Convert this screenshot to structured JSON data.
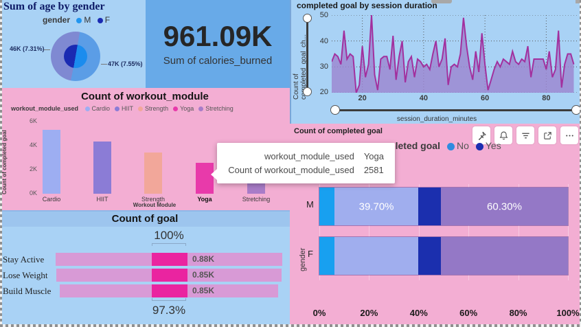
{
  "age_gender": {
    "title": "Sum of age by gender",
    "legend_title": "gender",
    "legend": [
      {
        "label": "M",
        "color": "#2196f0"
      },
      {
        "label": "F",
        "color": "#1a2ab2"
      }
    ],
    "slice_labels": {
      "left": "46K (7.31%)",
      "right": "47K (7.55%)"
    },
    "colors": {
      "outer_m": "#5b9de6",
      "outer_f": "#7f89d2",
      "inner_m": "#1b8cee",
      "inner_f": "#1a2ab2"
    }
  },
  "card": {
    "value": "961.09K",
    "label": "Sum of calories_burned"
  },
  "session": {
    "title": "completed goal by session duration",
    "y_label": "Count of completed_goal_ch...",
    "x_label": "session_duration_minutes",
    "y_ticks": [
      50,
      40,
      30,
      20
    ],
    "x_ticks": [
      20,
      40,
      60,
      80
    ]
  },
  "workout": {
    "title": "Count of workout_module",
    "legend_title": "workout_module_used",
    "y_axis": "Count of completed goal",
    "x_axis": "Workout Module",
    "y_ticks": [
      "6K",
      "4K",
      "2K",
      "0K"
    ],
    "highlight_category": "Yoga"
  },
  "tooltip": {
    "rows": [
      {
        "label": "workout_module_used",
        "value": "Yoga"
      },
      {
        "label": "Count of workout_module_used",
        "value": "2581"
      }
    ]
  },
  "funnel": {
    "title": "Count of goal",
    "top_percent": "100%",
    "bottom_percent": "97.3%",
    "colors": {
      "dim": "#d89ad6",
      "highlight": "#ea24a0"
    }
  },
  "stacked": {
    "title": "Count of completed goal",
    "legend_title": "completed goal",
    "legend": [
      {
        "label": "No",
        "color": "#2e8be0"
      },
      {
        "label": "Yes",
        "color": "#1b2fb0"
      }
    ],
    "y_axis": "gender",
    "x_ticks": [
      "0%",
      "20%",
      "40%",
      "60%",
      "80%",
      "100%"
    ],
    "segment_colors": [
      "#18a0f0",
      "#a0aeee",
      "#1b2fae",
      "#9478c6"
    ],
    "segment_widths_pct": [
      6.1,
      33.7,
      9.1,
      51.1
    ],
    "toolbar_icons": [
      "pin",
      "bell",
      "filter",
      "popout",
      "more"
    ]
  },
  "chart_data": [
    {
      "type": "pie",
      "title": "Sum of age by gender",
      "categories": [
        "M",
        "F"
      ],
      "values": [
        47000,
        46000
      ],
      "value_labels": [
        "47K (7.55%)",
        "46K (7.31%)"
      ],
      "legend_position": "top"
    },
    {
      "type": "card",
      "title": "Sum of calories_burned",
      "value": "961.09K"
    },
    {
      "type": "area",
      "title": "completed goal by session duration",
      "xlabel": "session_duration_minutes",
      "ylabel": "Count of completed_goal_ch...",
      "xlim": [
        10,
        90
      ],
      "ylim": [
        20,
        50
      ],
      "x_start": 10,
      "x_step": 1,
      "values": [
        32,
        35,
        34,
        31,
        44,
        33,
        35,
        34,
        20,
        23,
        38,
        26,
        31,
        50,
        27,
        21,
        33,
        34,
        34,
        29,
        42,
        25,
        34,
        40,
        24,
        32,
        34,
        26,
        33,
        32,
        30,
        31,
        29,
        35,
        40,
        30,
        33,
        41,
        23,
        30,
        31,
        30,
        35,
        49,
        38,
        30,
        25,
        36,
        28,
        43,
        31,
        21,
        25,
        29,
        32,
        30,
        33,
        32,
        31,
        36,
        32,
        31,
        33,
        32,
        38,
        26,
        33,
        33,
        33,
        33,
        29,
        36,
        26,
        29,
        44,
        22,
        31,
        35,
        35,
        31
      ],
      "grid": "dotted"
    },
    {
      "type": "bar",
      "title": "Count of workout_module",
      "categories": [
        "Cardio",
        "HIIT",
        "Strength",
        "Yoga",
        "Stretching"
      ],
      "values": [
        5300,
        4350,
        3450,
        2581,
        2600
      ],
      "colors": [
        "#9daef2",
        "#8b7cd6",
        "#f2a79a",
        "#e83aaa",
        "#a87cc8"
      ],
      "xlabel": "Workout Module",
      "ylabel": "Count of completed goal",
      "ylim": [
        0,
        6000
      ],
      "highlighted": "Yoga"
    },
    {
      "type": "bar",
      "subtype": "funnel",
      "title": "Count of goal",
      "categories": [
        "Stay Active",
        "Lose Weight",
        "Build Muscle"
      ],
      "value_labels": [
        "0.88K",
        "0.85K",
        "0.85K"
      ],
      "top_annotation": "100%",
      "bottom_annotation": "97.3%"
    },
    {
      "type": "bar",
      "subtype": "stacked-100",
      "title": "Count of completed goal",
      "categories": [
        "M",
        "F"
      ],
      "series": [
        {
          "name": "No",
          "values_pct": [
            39.7,
            39.7
          ]
        },
        {
          "name": "Yes",
          "values_pct": [
            60.3,
            60.3
          ]
        }
      ],
      "bar_labels_M": [
        "39.70%",
        "60.30%"
      ],
      "xlabel_ticks": [
        "0%",
        "20%",
        "40%",
        "60%",
        "80%",
        "100%"
      ],
      "ylabel": "gender"
    }
  ]
}
